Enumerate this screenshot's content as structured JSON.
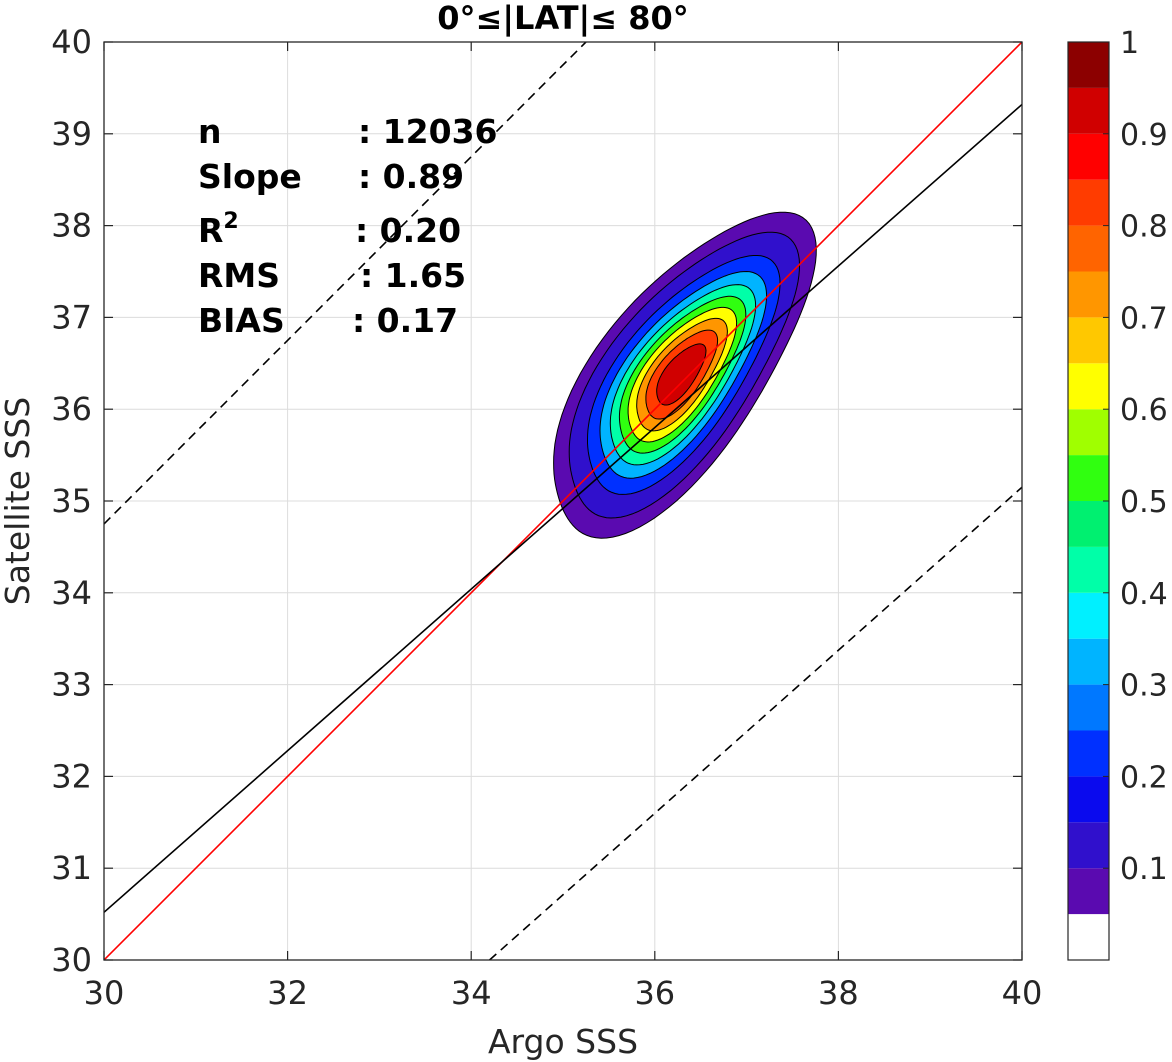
{
  "chart_data": {
    "type": "contour",
    "title": "0°≤|LAT|≤ 80°",
    "xlabel": "Argo SSS",
    "ylabel": "Satellite SSS",
    "xlim": [
      30,
      40
    ],
    "ylim": [
      30,
      40
    ],
    "x_ticks": [
      "30",
      "32",
      "34",
      "36",
      "38",
      "40"
    ],
    "y_ticks": [
      "30",
      "31",
      "32",
      "33",
      "34",
      "35",
      "36",
      "37",
      "38",
      "39",
      "40"
    ],
    "grid": true,
    "density": {
      "center": [
        36.28,
        36.38
      ],
      "principal_axis_deg": 52,
      "sigma_major": 0.85,
      "sigma_minor": 0.36,
      "levels": [
        0.05,
        0.1,
        0.2,
        0.3,
        0.4,
        0.5,
        0.6,
        0.7,
        0.8,
        0.9
      ]
    },
    "lines": [
      {
        "style": "one-to-one",
        "color": "#ff0000",
        "dash": false,
        "points": [
          [
            30,
            30
          ],
          [
            40,
            40
          ]
        ]
      },
      {
        "style": "regression",
        "color": "#000000",
        "dash": false,
        "points": [
          [
            30,
            30.52
          ],
          [
            40,
            39.32
          ]
        ]
      },
      {
        "style": "upper-bound",
        "color": "#000000",
        "dash": true,
        "points": [
          [
            30,
            34.75
          ],
          [
            35.25,
            40
          ]
        ]
      },
      {
        "style": "lower-bound",
        "color": "#000000",
        "dash": true,
        "points": [
          [
            34.2,
            30
          ],
          [
            40,
            35.15
          ]
        ]
      }
    ],
    "stats": [
      {
        "key": "n",
        "value": ": 12036"
      },
      {
        "key": "Slope",
        "value": ": 0.89"
      },
      {
        "key": "R",
        "key_sup": "2",
        "value": ": 0.20"
      },
      {
        "key": "RMS",
        "value": ": 1.65"
      },
      {
        "key": "BIAS",
        "value": ": 0.17"
      }
    ],
    "colorbar": {
      "range": [
        0,
        1
      ],
      "boundaries": [
        0,
        0.05,
        0.1,
        0.15,
        0.2,
        0.25,
        0.3,
        0.35,
        0.4,
        0.45,
        0.5,
        0.55,
        0.6,
        0.65,
        0.7,
        0.75,
        0.8,
        0.85,
        0.9,
        0.95,
        1
      ],
      "colors": [
        "#ffffff",
        "#5a0ab0",
        "#3010cc",
        "#0a0aee",
        "#0030ff",
        "#0078ff",
        "#00b4ff",
        "#00f0ff",
        "#00ffa8",
        "#00f070",
        "#30ff10",
        "#a0ff00",
        "#ffff00",
        "#ffc800",
        "#ff9600",
        "#ff6400",
        "#ff3c00",
        "#ff0000",
        "#d00000",
        "#8c0000"
      ],
      "tick_labels": [
        "0.1",
        "0.2",
        "0.3",
        "0.4",
        "0.5",
        "0.6",
        "0.7",
        "0.8",
        "0.9",
        "1"
      ],
      "tick_values": [
        0.1,
        0.2,
        0.3,
        0.4,
        0.5,
        0.6,
        0.7,
        0.8,
        0.9,
        1.0
      ]
    }
  }
}
